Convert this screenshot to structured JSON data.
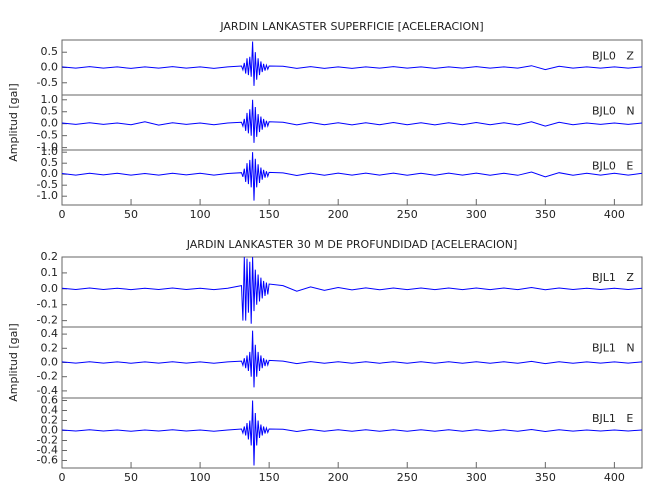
{
  "chart_data": [
    {
      "type": "line",
      "title": "JARDIN LANKASTER SUPERFICIE [ACELERACION]",
      "y_label": "Amplitud [gal]",
      "xlim": [
        0,
        420
      ],
      "xticks": [
        0,
        50,
        100,
        150,
        200,
        250,
        300,
        350,
        400
      ],
      "x": [
        0,
        10,
        20,
        30,
        40,
        50,
        60,
        70,
        80,
        90,
        100,
        110,
        120,
        130,
        131,
        132,
        133,
        134,
        135,
        136,
        137,
        138,
        139,
        140,
        141,
        142,
        143,
        144,
        145,
        146,
        147,
        148,
        149,
        150,
        160,
        170,
        180,
        190,
        200,
        210,
        220,
        230,
        240,
        250,
        260,
        270,
        280,
        290,
        300,
        310,
        320,
        330,
        340,
        350,
        360,
        370,
        380,
        390,
        400,
        410,
        420
      ],
      "series": [
        {
          "name": "BJL0   Z",
          "color": "#0000ff",
          "ylim": [
            -0.9,
            0.9
          ],
          "yticks": [
            -0.5,
            {
              "value": 0,
              "label": "0.0"
            },
            0.5
          ],
          "values": [
            0.02,
            -0.02,
            0.03,
            -0.02,
            0.02,
            -0.03,
            0.02,
            -0.02,
            0.03,
            -0.02,
            0.02,
            -0.03,
            0.02,
            0.05,
            -0.08,
            0.15,
            -0.2,
            0.3,
            -0.25,
            0.35,
            -0.3,
            0.85,
            -0.6,
            0.5,
            -0.4,
            0.3,
            -0.25,
            0.2,
            -0.15,
            0.12,
            -0.1,
            0.08,
            -0.06,
            0.05,
            0.04,
            -0.03,
            0.03,
            -0.03,
            0.02,
            -0.03,
            0.02,
            -0.02,
            0.03,
            -0.02,
            0.02,
            -0.03,
            0.02,
            -0.02,
            0.03,
            -0.02,
            0.02,
            -0.02,
            0.06,
            -0.07,
            0.04,
            -0.02,
            0.02,
            -0.02,
            0.02,
            -0.02,
            0.02
          ]
        },
        {
          "name": "BJL0   N",
          "color": "#0000ff",
          "ylim": [
            -1.1,
            1.2
          ],
          "yticks": [
            {
              "value": -1,
              "label": "-1.0"
            },
            -0.5,
            {
              "value": 0,
              "label": "0.0"
            },
            0.5,
            {
              "value": 1,
              "label": "1.0"
            }
          ],
          "values": [
            0.03,
            -0.03,
            0.04,
            -0.03,
            0.03,
            -0.04,
            0.08,
            -0.06,
            0.04,
            -0.03,
            0.03,
            -0.04,
            0.03,
            0.06,
            -0.1,
            0.2,
            -0.3,
            0.45,
            -0.4,
            0.6,
            -0.5,
            1.0,
            -0.8,
            0.7,
            -0.55,
            0.4,
            -0.35,
            0.3,
            -0.25,
            0.2,
            -0.15,
            0.12,
            -0.1,
            0.08,
            0.06,
            -0.05,
            0.05,
            -0.04,
            0.04,
            -0.05,
            0.04,
            -0.04,
            0.05,
            -0.04,
            0.04,
            -0.05,
            0.04,
            -0.04,
            0.05,
            -0.04,
            0.04,
            -0.05,
            0.08,
            -0.1,
            0.06,
            -0.04,
            0.03,
            -0.03,
            0.03,
            -0.03,
            0.03
          ]
        },
        {
          "name": "BJL0   E",
          "color": "#0000ff",
          "ylim": [
            -1.4,
            1.1
          ],
          "yticks": [
            {
              "value": -1,
              "label": "-1.0"
            },
            -0.5,
            {
              "value": 0,
              "label": "0.0"
            },
            0.5,
            {
              "value": 1,
              "label": "1.0"
            }
          ],
          "values": [
            0.03,
            -0.04,
            0.04,
            -0.03,
            0.04,
            -0.04,
            0.03,
            -0.04,
            0.04,
            -0.03,
            0.04,
            -0.04,
            0.03,
            0.07,
            -0.12,
            0.25,
            -0.35,
            0.5,
            -0.45,
            0.65,
            -0.6,
            1.0,
            -1.2,
            0.7,
            -0.6,
            0.45,
            -0.4,
            0.3,
            -0.25,
            0.2,
            -0.16,
            0.13,
            -0.1,
            0.08,
            0.06,
            -0.06,
            0.05,
            -0.05,
            0.05,
            -0.04,
            0.05,
            -0.04,
            0.05,
            -0.05,
            0.04,
            -0.05,
            0.05,
            -0.04,
            0.05,
            -0.05,
            0.04,
            -0.05,
            0.1,
            -0.12,
            0.07,
            -0.05,
            0.04,
            -0.04,
            0.04,
            -0.04,
            0.04
          ]
        }
      ]
    },
    {
      "type": "line",
      "title": "JARDIN LANKASTER 30 M DE PROFUNDIDAD [ACELERACION]",
      "y_label": "Amplitud [gal]",
      "xlim": [
        0,
        420
      ],
      "xticks": [
        0,
        50,
        100,
        150,
        200,
        250,
        300,
        350,
        400
      ],
      "x": [
        0,
        10,
        20,
        30,
        40,
        50,
        60,
        70,
        80,
        90,
        100,
        110,
        120,
        130,
        131,
        132,
        133,
        134,
        135,
        136,
        137,
        138,
        139,
        140,
        141,
        142,
        143,
        144,
        145,
        146,
        147,
        148,
        149,
        150,
        160,
        170,
        180,
        190,
        200,
        210,
        220,
        230,
        240,
        250,
        260,
        270,
        280,
        290,
        300,
        310,
        320,
        330,
        340,
        350,
        360,
        370,
        380,
        390,
        400,
        410,
        420
      ],
      "series": [
        {
          "name": "BJL1   Z",
          "color": "#0000ff",
          "ylim": [
            -0.24,
            0.2
          ],
          "yticks": [
            -0.2,
            -0.1,
            {
              "value": 0,
              "label": "0.0"
            },
            0.1,
            0.2
          ],
          "values": [
            0.004,
            -0.004,
            0.005,
            -0.004,
            0.004,
            -0.005,
            0.004,
            -0.004,
            0.005,
            -0.004,
            0.004,
            -0.005,
            0.004,
            0.02,
            -0.2,
            0.2,
            -0.2,
            0.19,
            -0.15,
            0.17,
            -0.22,
            0.2,
            -0.14,
            0.12,
            -0.1,
            0.09,
            -0.08,
            0.07,
            -0.06,
            0.05,
            -0.045,
            0.04,
            -0.035,
            0.03,
            0.02,
            -0.015,
            0.012,
            -0.01,
            0.008,
            -0.007,
            0.006,
            -0.006,
            0.005,
            -0.005,
            0.005,
            -0.005,
            0.005,
            -0.005,
            0.005,
            -0.005,
            0.005,
            -0.005,
            0.008,
            -0.006,
            0.005,
            -0.004,
            0.004,
            -0.004,
            0.004,
            -0.004,
            0.004
          ]
        },
        {
          "name": "BJL1   N",
          "color": "#0000ff",
          "ylim": [
            -0.5,
            0.5
          ],
          "yticks": [
            -0.4,
            -0.2,
            {
              "value": 0,
              "label": "0.0"
            },
            0.2,
            0.4
          ],
          "values": [
            0.008,
            -0.008,
            0.01,
            -0.008,
            0.008,
            -0.01,
            0.008,
            -0.008,
            0.01,
            -0.008,
            0.008,
            -0.01,
            0.008,
            0.02,
            -0.04,
            0.06,
            -0.08,
            0.1,
            -0.12,
            0.15,
            -0.2,
            0.45,
            -0.35,
            0.25,
            -0.2,
            0.15,
            -0.12,
            0.1,
            -0.08,
            0.06,
            -0.05,
            0.04,
            -0.035,
            0.03,
            0.02,
            -0.015,
            0.012,
            -0.01,
            0.01,
            -0.01,
            0.01,
            -0.01,
            0.01,
            -0.01,
            0.01,
            -0.01,
            0.01,
            -0.01,
            0.01,
            -0.01,
            0.01,
            -0.01,
            0.015,
            -0.015,
            0.01,
            -0.01,
            0.008,
            -0.008,
            0.008,
            -0.008,
            0.008
          ]
        },
        {
          "name": "BJL1   E",
          "color": "#0000ff",
          "ylim": [
            -0.75,
            0.65
          ],
          "yticks": [
            -0.6,
            -0.4,
            -0.2,
            {
              "value": 0,
              "label": "0.0"
            },
            0.2,
            0.4,
            0.6
          ],
          "values": [
            0.01,
            -0.01,
            0.015,
            -0.01,
            0.01,
            -0.015,
            0.01,
            -0.01,
            0.015,
            -0.01,
            0.01,
            -0.015,
            0.01,
            0.03,
            -0.05,
            0.08,
            -0.1,
            0.15,
            -0.18,
            0.2,
            -0.3,
            0.6,
            -0.7,
            0.35,
            -0.3,
            0.2,
            -0.15,
            0.12,
            -0.1,
            0.08,
            -0.06,
            0.05,
            -0.04,
            0.03,
            0.025,
            -0.02,
            0.02,
            -0.015,
            0.015,
            -0.015,
            0.015,
            -0.015,
            0.015,
            -0.015,
            0.015,
            -0.015,
            0.015,
            -0.015,
            0.015,
            -0.015,
            0.015,
            -0.015,
            0.02,
            -0.02,
            0.015,
            -0.012,
            0.01,
            -0.01,
            0.01,
            -0.01,
            0.01
          ]
        }
      ]
    }
  ]
}
